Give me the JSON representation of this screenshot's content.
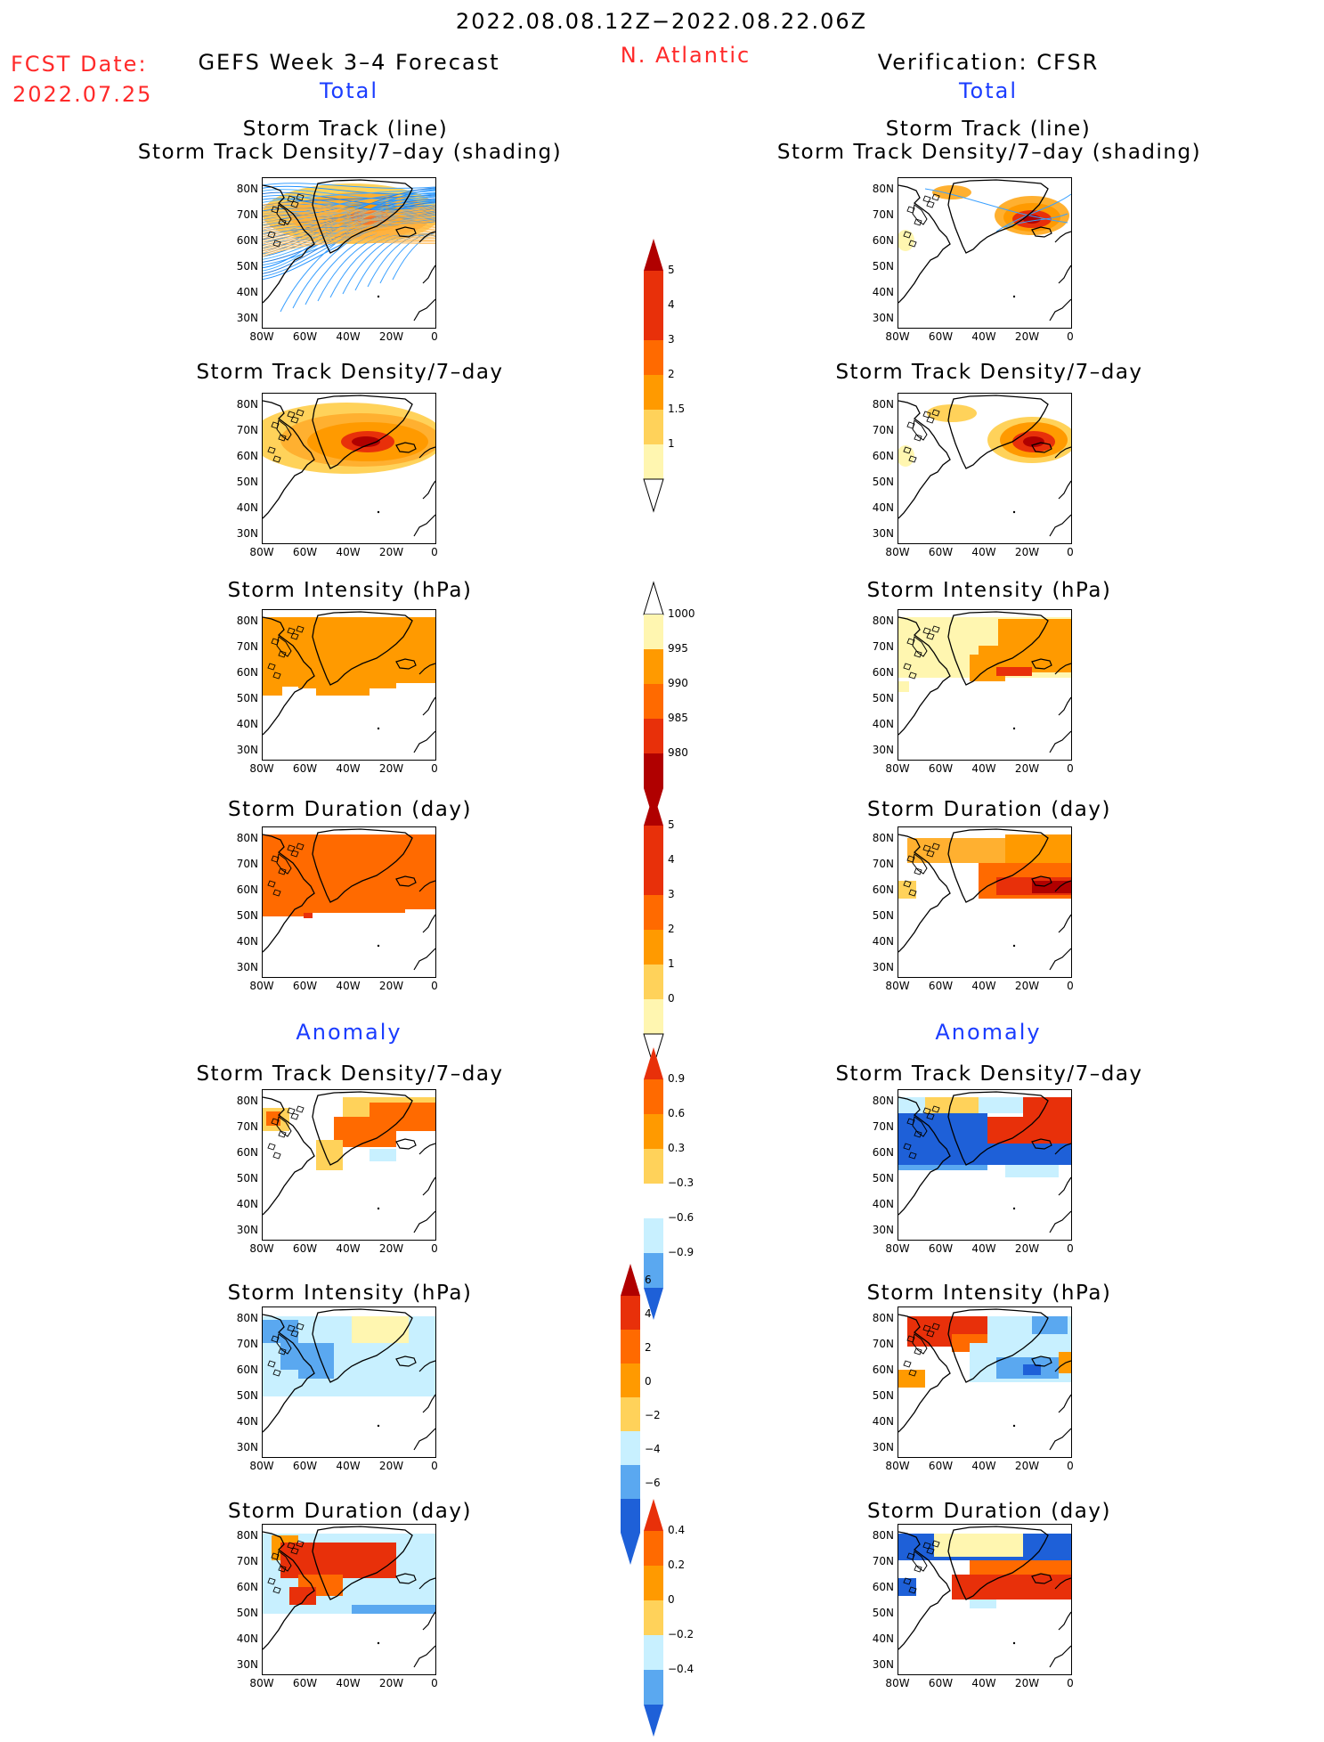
{
  "header": {
    "date_range": "2022.08.08.12Z−2022.08.22.06Z",
    "fcst_date_label": "FCST Date:",
    "fcst_date_value": "2022.07.25",
    "left_title": "GEFS Week 3–4 Forecast",
    "region": "N. Atlantic",
    "right_title": "Verification: CFSR"
  },
  "sections": {
    "total": "Total",
    "anomaly": "Anomaly"
  },
  "panel_titles": {
    "track_line": "Storm Track (line)",
    "track_shading": "Storm Track Density/7–day (shading)",
    "density": "Storm Track Density/7–day",
    "intensity": "Storm Intensity (hPa)",
    "duration": "Storm Duration (day)"
  },
  "axes": {
    "lat_labels": [
      "80N",
      "70N",
      "60N",
      "50N",
      "40N",
      "30N"
    ],
    "lon_labels": [
      "80W",
      "60W",
      "40W",
      "20W",
      "0"
    ]
  },
  "colorbars": {
    "density_total": [
      "5",
      "4",
      "3",
      "2",
      "1.5",
      "1"
    ],
    "intensity_total": [
      "1000",
      "995",
      "990",
      "985",
      "980"
    ],
    "duration_total": [
      "5",
      "4",
      "3",
      "2",
      "1",
      "0"
    ],
    "density_anom": [
      "0.9",
      "0.6",
      "0.3",
      "−0.3",
      "−0.6",
      "−0.9"
    ],
    "intensity_anom": [
      "6",
      "4",
      "2",
      "0",
      "−2",
      "−4",
      "−6"
    ],
    "duration_anom": [
      "0.4",
      "0.2",
      "0",
      "−0.2",
      "−0.4"
    ]
  },
  "colors": {
    "red_text": "#ff2a2a",
    "blue_text": "#1a3cff",
    "light_yellow": "#fff6b0",
    "yellow": "#ffd25a",
    "orange_light": "#ffb030",
    "orange": "#ff9a00",
    "orange_dark": "#ff6a00",
    "red": "#e8300a",
    "dark_red": "#b00000",
    "light_blue": "#c8f0ff",
    "mid_blue": "#5aa8f0",
    "blue": "#1e60d8"
  }
}
